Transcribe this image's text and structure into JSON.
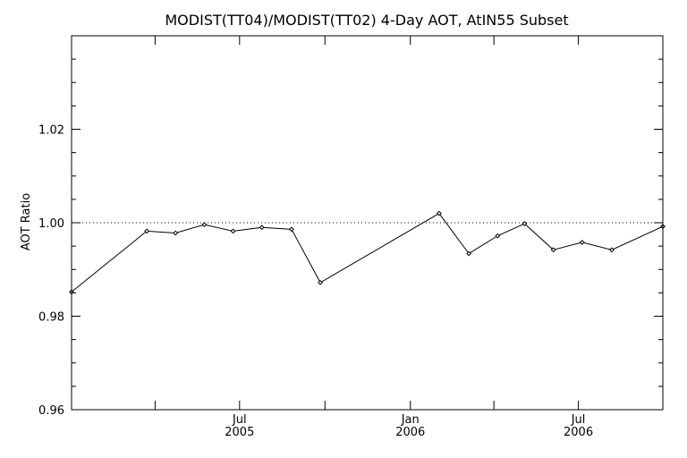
{
  "chart_data": {
    "type": "line",
    "title": "MODIST(TT04)/MODIST(TT02) 4-Day AOT, AtIN55 Subset",
    "xlabel": "",
    "ylabel": "AOT Ratio",
    "xlim": [
      "2005-01-01",
      "2006-09-30"
    ],
    "ylim": [
      0.96,
      1.04
    ],
    "y_ticks": [
      0.96,
      0.98,
      1.0,
      1.02
    ],
    "y_tick_labels": [
      "0.96",
      "0.98",
      "1.00",
      "1.02"
    ],
    "y_minor_ticks": [
      0.965,
      0.97,
      0.975,
      0.985,
      0.99,
      0.995,
      1.005,
      1.01,
      1.015,
      1.025,
      1.03,
      1.035
    ],
    "x_ticks": [
      {
        "date": "2005-04-01",
        "line1": "",
        "line2": ""
      },
      {
        "date": "2005-07-01",
        "line1": "Jul",
        "line2": "2005"
      },
      {
        "date": "2005-10-01",
        "line1": "",
        "line2": ""
      },
      {
        "date": "2006-01-01",
        "line1": "Jan",
        "line2": "2006"
      },
      {
        "date": "2006-04-01",
        "line1": "",
        "line2": ""
      },
      {
        "date": "2006-07-01",
        "line1": "Jul",
        "line2": "2006"
      }
    ],
    "reference_line": {
      "y": 1.0,
      "style": "dotted"
    },
    "grid": false,
    "series": [
      {
        "color": "#000000",
        "marker": "diamond",
        "points": [
          {
            "x": "2005-01-01",
            "y": 0.9852
          },
          {
            "x": "2005-03-23",
            "y": 0.9982
          },
          {
            "x": "2005-04-23",
            "y": 0.9978
          },
          {
            "x": "2005-05-24",
            "y": 0.9996
          },
          {
            "x": "2005-06-24",
            "y": 0.9982
          },
          {
            "x": "2005-07-25",
            "y": 0.999
          },
          {
            "x": "2005-08-26",
            "y": 0.9986
          },
          {
            "x": "2005-09-26",
            "y": 0.9872
          },
          {
            "x": "2006-02-01",
            "y": 1.002
          },
          {
            "x": "2006-03-05",
            "y": 0.9934
          },
          {
            "x": "2006-04-05",
            "y": 0.9972
          },
          {
            "x": "2006-05-04",
            "y": 0.9998
          },
          {
            "x": "2006-06-04",
            "y": 0.9942
          },
          {
            "x": "2006-07-05",
            "y": 0.9958
          },
          {
            "x": "2006-08-06",
            "y": 0.9942
          },
          {
            "x": "2006-09-30",
            "y": 0.9992
          }
        ]
      }
    ]
  }
}
